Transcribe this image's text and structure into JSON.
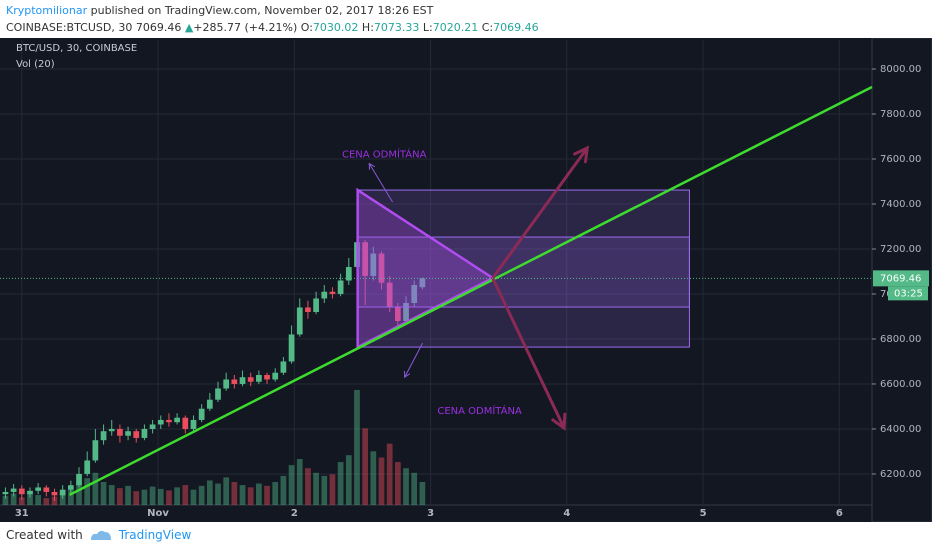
{
  "header": {
    "author": "Kryptomilionar",
    "published": "published on TradingView.com, November 02, 2017 18:26 EST",
    "symbol": "COINBASE:BTCUSD, 30",
    "last": "7069.46",
    "change_arrow": "▲",
    "change": "+285.77 (+4.21%)",
    "o_label": "O:",
    "open": "7030.02",
    "h_label": "H:",
    "high": "7073.33",
    "l_label": "L:",
    "low": "7020.21",
    "c_label": "C:",
    "close": "7069.46"
  },
  "footer": {
    "created": "Created with",
    "brand": "TradingView"
  },
  "chart_data": {
    "type": "candlestick",
    "legend": "BTC/USD, 30, COINBASE",
    "volume_label": "Vol (20)",
    "countdown": "03:25",
    "up_color": "#53b987",
    "down_color": "#eb4d5c",
    "grid": true,
    "last_price": {
      "value": 7069.46,
      "label": "7069.46"
    },
    "xlim": [
      -0.16,
      6.24
    ],
    "xticks": [
      {
        "value": 0,
        "label": "31"
      },
      {
        "value": 1,
        "label": "Nov"
      },
      2,
      3,
      4,
      5,
      6
    ],
    "ylim": [
      6062,
      8129
    ],
    "yticks": [
      {
        "value": 6200,
        "label": "6200.00"
      },
      {
        "value": 6400,
        "label": "6400.00"
      },
      {
        "value": 6600,
        "label": "6600.00"
      },
      {
        "value": 6800,
        "label": "6800.00"
      },
      {
        "value": 7000,
        "label": "7000.00"
      },
      {
        "value": 7200,
        "label": "7200.00"
      },
      {
        "value": 7400,
        "label": "7400.00"
      },
      {
        "value": 7600,
        "label": "7600.00"
      },
      {
        "value": 7800,
        "label": "7800.00"
      },
      {
        "value": 8000,
        "label": "8000.00"
      }
    ],
    "x": [
      -0.12,
      -0.06,
      0,
      0.06,
      0.12,
      0.18,
      0.24,
      0.3,
      0.36,
      0.42,
      0.48,
      0.54,
      0.6,
      0.66,
      0.72,
      0.78,
      0.84,
      0.9,
      0.96,
      1.02,
      1.08,
      1.14,
      1.2,
      1.26,
      1.32,
      1.38,
      1.44,
      1.5,
      1.56,
      1.62,
      1.68,
      1.74,
      1.8,
      1.86,
      1.92,
      1.98,
      2.04,
      2.1,
      2.16,
      2.22,
      2.28,
      2.34,
      2.4,
      2.46,
      2.52,
      2.58,
      2.64,
      2.7,
      2.76,
      2.82,
      2.88,
      2.94
    ],
    "open": [
      6110,
      6120,
      6135,
      6110,
      6125,
      6140,
      6120,
      6105,
      6130,
      6150,
      6200,
      6260,
      6350,
      6390,
      6400,
      6370,
      6390,
      6360,
      6400,
      6420,
      6440,
      6430,
      6450,
      6400,
      6440,
      6490,
      6530,
      6580,
      6620,
      6600,
      6630,
      6610,
      6640,
      6620,
      6650,
      6700,
      6820,
      6940,
      6920,
      6980,
      7010,
      7000,
      7060,
      7120,
      7230,
      7080,
      7180,
      7050,
      6940,
      6880,
      6960,
      7030.02
    ],
    "high": [
      6140,
      6155,
      6150,
      6140,
      6160,
      6150,
      6135,
      6150,
      6170,
      6230,
      6300,
      6400,
      6420,
      6440,
      6420,
      6410,
      6400,
      6420,
      6440,
      6460,
      6470,
      6470,
      6460,
      6460,
      6510,
      6560,
      6610,
      6650,
      6640,
      6660,
      6650,
      6660,
      6650,
      6670,
      6720,
      6860,
      6980,
      6970,
      7010,
      7040,
      7030,
      7090,
      7160,
      7260,
      7240,
      7210,
      7190,
      7080,
      6960,
      6990,
      7060,
      7073.33
    ],
    "low": [
      6090,
      6100,
      6085,
      6095,
      6110,
      6100,
      6080,
      6090,
      6115,
      6140,
      6190,
      6250,
      6330,
      6370,
      6340,
      6350,
      6340,
      6350,
      6380,
      6400,
      6410,
      6420,
      6380,
      6390,
      6430,
      6480,
      6520,
      6570,
      6580,
      6590,
      6590,
      6600,
      6600,
      6610,
      6640,
      6690,
      6810,
      6890,
      6910,
      6960,
      6980,
      6990,
      7040,
      7100,
      6950,
      7060,
      7020,
      6920,
      6850,
      6870,
      6940,
      7020.21
    ],
    "close": [
      6120,
      6135,
      6110,
      6125,
      6140,
      6120,
      6105,
      6130,
      6150,
      6200,
      6260,
      6350,
      6390,
      6400,
      6370,
      6390,
      6360,
      6400,
      6420,
      6440,
      6430,
      6450,
      6400,
      6440,
      6490,
      6530,
      6580,
      6620,
      6600,
      6630,
      6610,
      6640,
      6620,
      6650,
      6700,
      6820,
      6940,
      6920,
      6980,
      7010,
      7000,
      7060,
      7120,
      7230,
      7080,
      7180,
      7050,
      6940,
      6880,
      6960,
      7040,
      7069.46
    ],
    "volume": [
      120,
      150,
      100,
      180,
      130,
      90,
      110,
      160,
      200,
      280,
      350,
      420,
      300,
      260,
      220,
      250,
      180,
      200,
      240,
      210,
      190,
      230,
      260,
      200,
      250,
      320,
      280,
      360,
      300,
      260,
      230,
      280,
      250,
      300,
      380,
      520,
      600,
      480,
      420,
      380,
      400,
      560,
      650,
      1500,
      1000,
      700,
      620,
      800,
      560,
      480,
      420,
      300
    ],
    "trendline": {
      "color": "#3ddc2e",
      "x": [
        0.35,
        6.24
      ],
      "y": [
        6107,
        7920
      ]
    },
    "triangle": {
      "color": "#b04cf0",
      "x": [
        2.465,
        2.465,
        3.456
      ],
      "y": [
        7462,
        6764,
        7071
      ]
    },
    "rectangles": [
      {
        "color": "#9c6cf0",
        "x": [
          2.465,
          4.9
        ],
        "y": [
          6764,
          7462
        ]
      },
      {
        "color": "#9c6cf0",
        "x": [
          2.465,
          4.9
        ],
        "y": [
          6942,
          7253
        ]
      }
    ],
    "arrows": [
      {
        "color": "#8b2a55",
        "x": [
          3.456,
          4.15
        ],
        "y": [
          7071,
          7649
        ]
      },
      {
        "color": "#8b2a55",
        "x": [
          3.456,
          3.98
        ],
        "y": [
          7071,
          6404
        ]
      },
      {
        "color": "#8a5ad8",
        "x": [
          2.72,
          2.55
        ],
        "y": [
          7410,
          7580
        ]
      },
      {
        "color": "#8a5ad8",
        "x": [
          2.94,
          2.81
        ],
        "y": [
          6780,
          6630
        ]
      }
    ],
    "annotations": [
      {
        "text": "CENA ODMÍTÁNA",
        "color": "#9b30e0",
        "x": 2.35,
        "y": 7620
      },
      {
        "text": "CENA ODMÍTÁNA",
        "color": "#9b30e0",
        "x": 3.05,
        "y": 6480
      }
    ]
  }
}
